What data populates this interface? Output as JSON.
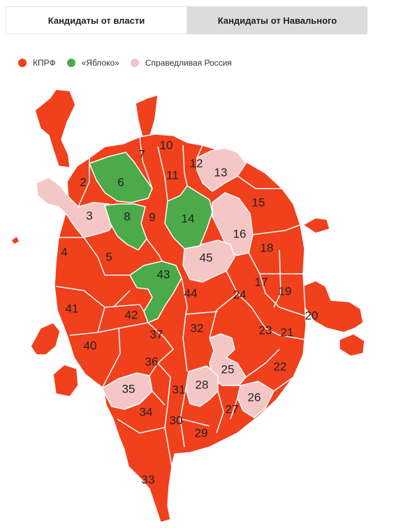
{
  "tabs": [
    {
      "label": "Кандидаты от власти",
      "active": true
    },
    {
      "label": "Кандидаты от Навального",
      "active": false
    }
  ],
  "legend": [
    {
      "label": "КПРФ",
      "color": "#f0401c"
    },
    {
      "label": "«Яблоко»",
      "color": "#4caa4a"
    },
    {
      "label": "Справедливая Россия",
      "color": "#f4c6c6"
    }
  ],
  "colors": {
    "kprf": "#f0401c",
    "yabloko": "#4caa4a",
    "sr": "#f4c6c6"
  },
  "districts": [
    {
      "number": "2",
      "party": "kprf"
    },
    {
      "number": "3",
      "party": "sr"
    },
    {
      "number": "4",
      "party": "kprf"
    },
    {
      "number": "5",
      "party": "kprf"
    },
    {
      "number": "6",
      "party": "yabloko"
    },
    {
      "number": "7",
      "party": "kprf"
    },
    {
      "number": "8",
      "party": "yabloko"
    },
    {
      "number": "9",
      "party": "kprf"
    },
    {
      "number": "10",
      "party": "kprf"
    },
    {
      "number": "11",
      "party": "kprf"
    },
    {
      "number": "12",
      "party": "kprf"
    },
    {
      "number": "13",
      "party": "sr"
    },
    {
      "number": "14",
      "party": "yabloko"
    },
    {
      "number": "15",
      "party": "kprf"
    },
    {
      "number": "16",
      "party": "sr"
    },
    {
      "number": "17",
      "party": "kprf"
    },
    {
      "number": "18",
      "party": "kprf"
    },
    {
      "number": "19",
      "party": "kprf"
    },
    {
      "number": "20",
      "party": "kprf"
    },
    {
      "number": "21",
      "party": "kprf"
    },
    {
      "number": "22",
      "party": "kprf"
    },
    {
      "number": "23",
      "party": "kprf"
    },
    {
      "number": "24",
      "party": "kprf"
    },
    {
      "number": "25",
      "party": "sr"
    },
    {
      "number": "26",
      "party": "sr"
    },
    {
      "number": "27",
      "party": "kprf"
    },
    {
      "number": "28",
      "party": "sr"
    },
    {
      "number": "29",
      "party": "kprf"
    },
    {
      "number": "30",
      "party": "kprf"
    },
    {
      "number": "31",
      "party": "kprf"
    },
    {
      "number": "32",
      "party": "kprf"
    },
    {
      "number": "33",
      "party": "kprf"
    },
    {
      "number": "34",
      "party": "kprf"
    },
    {
      "number": "35",
      "party": "sr"
    },
    {
      "number": "36",
      "party": "kprf"
    },
    {
      "number": "37",
      "party": "kprf"
    },
    {
      "number": "40",
      "party": "kprf"
    },
    {
      "number": "41",
      "party": "kprf"
    },
    {
      "number": "42",
      "party": "kprf"
    },
    {
      "number": "43",
      "party": "yabloko"
    },
    {
      "number": "44",
      "party": "kprf"
    },
    {
      "number": "45",
      "party": "sr"
    }
  ]
}
